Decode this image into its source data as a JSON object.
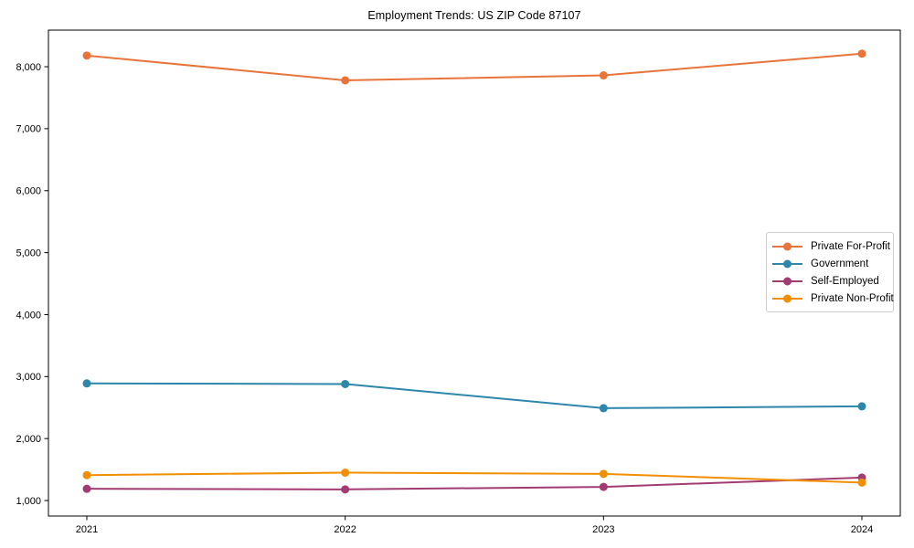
{
  "chart_data": {
    "type": "line",
    "title": "Employment Trends: US ZIP Code 87107",
    "categories": [
      "2021",
      "2022",
      "2023",
      "2024"
    ],
    "series": [
      {
        "name": "Private For-Profit",
        "color": "#E8743B",
        "values": [
          8180,
          7780,
          7860,
          8210
        ]
      },
      {
        "name": "Government",
        "color": "#2E86AB",
        "values": [
          2890,
          2880,
          2490,
          2520
        ]
      },
      {
        "name": "Self-Employed",
        "color": "#A23B72",
        "values": [
          1190,
          1180,
          1220,
          1370
        ]
      },
      {
        "name": "Private Non-Profit",
        "color": "#F18F01",
        "values": [
          1410,
          1450,
          1430,
          1290
        ]
      }
    ],
    "xlabel": "",
    "ylabel": "",
    "ylim": [
      750,
      8590
    ],
    "y_ticks": [
      1000,
      2000,
      3000,
      4000,
      5000,
      6000,
      7000,
      8000
    ],
    "y_tick_labels": [
      "1,000",
      "2,000",
      "3,000",
      "4,000",
      "5,000",
      "6,000",
      "7,000",
      "8,000"
    ],
    "grid": false,
    "legend_position": "center-right",
    "marker": "circle",
    "axis_color": "#000000"
  }
}
